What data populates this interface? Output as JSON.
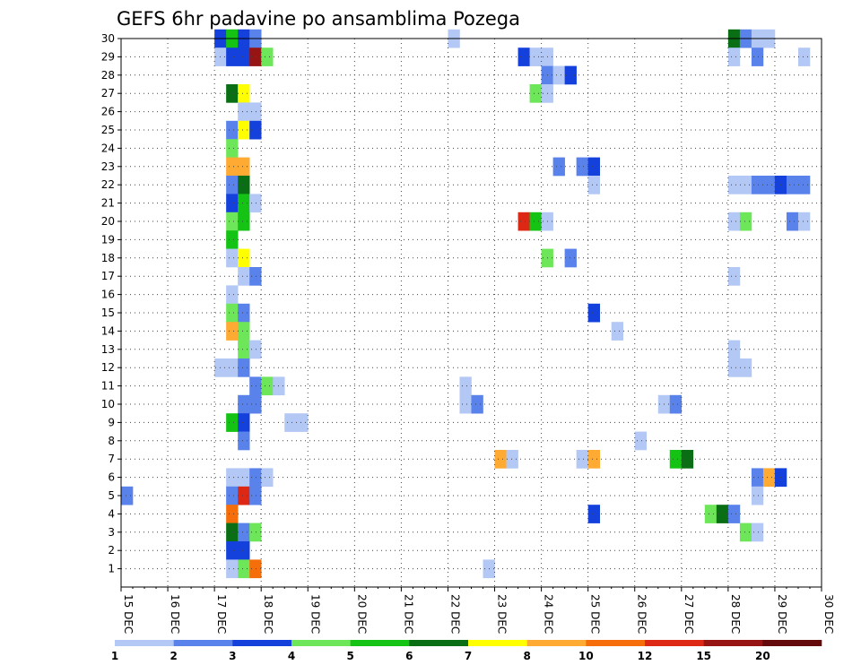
{
  "chart_data": {
    "type": "heatmap",
    "title": "GEFS 6hr padavine po ansamblima Pozega",
    "x_tick_labels": [
      "15 DEC",
      "16 DEC",
      "17 DEC",
      "18 DEC",
      "19 DEC",
      "20 DEC",
      "21 DEC",
      "22 DEC",
      "23 DEC",
      "24 DEC",
      "25 DEC",
      "26 DEC",
      "27 DEC",
      "28 DEC",
      "29 DEC",
      "30 DEC"
    ],
    "y_tick_labels": [
      "1",
      "2",
      "3",
      "4",
      "5",
      "6",
      "7",
      "8",
      "9",
      "10",
      "11",
      "12",
      "13",
      "14",
      "15",
      "16",
      "17",
      "18",
      "19",
      "20",
      "21",
      "22",
      "23",
      "24",
      "25",
      "26",
      "27",
      "28",
      "29",
      "30"
    ],
    "xlim_days": [
      15,
      30
    ],
    "ylim": [
      0,
      30
    ],
    "grid": true,
    "steps_per_day": 4,
    "legend": {
      "position": "bottom",
      "labels": [
        "1",
        "2",
        "3",
        "4",
        "5",
        "6",
        "7",
        "8",
        "10",
        "12",
        "15",
        "20"
      ],
      "colors": [
        "#b4c8f5",
        "#5a82eb",
        "#1440dc",
        "#6ee65a",
        "#14c314",
        "#0a6e14",
        "#ffff00",
        "#ffaa32",
        "#f56e0a",
        "#dc2814",
        "#961414",
        "#640a0a"
      ]
    },
    "cells": [
      {
        "member": 30,
        "start": 17.0,
        "class": 2
      },
      {
        "member": 30,
        "start": 17.25,
        "class": 4
      },
      {
        "member": 30,
        "start": 17.5,
        "class": 2
      },
      {
        "member": 30,
        "start": 17.75,
        "class": 1
      },
      {
        "member": 30,
        "start": 22.0,
        "class": 0
      },
      {
        "member": 30,
        "start": 28.0,
        "class": 5
      },
      {
        "member": 30,
        "start": 28.25,
        "class": 1
      },
      {
        "member": 30,
        "start": 28.5,
        "class": 0
      },
      {
        "member": 30,
        "start": 28.75,
        "class": 0
      },
      {
        "member": 29,
        "start": 17.0,
        "class": 0
      },
      {
        "member": 29,
        "start": 17.25,
        "class": 2
      },
      {
        "member": 29,
        "start": 17.5,
        "class": 2
      },
      {
        "member": 29,
        "start": 17.75,
        "class": 10
      },
      {
        "member": 29,
        "start": 18.0,
        "class": 3
      },
      {
        "member": 29,
        "start": 23.5,
        "class": 2
      },
      {
        "member": 29,
        "start": 23.75,
        "class": 0
      },
      {
        "member": 29,
        "start": 24.0,
        "class": 0
      },
      {
        "member": 29,
        "start": 28.0,
        "class": 0
      },
      {
        "member": 29,
        "start": 28.5,
        "class": 1
      },
      {
        "member": 29,
        "start": 29.5,
        "class": 0
      },
      {
        "member": 28,
        "start": 24.0,
        "class": 1
      },
      {
        "member": 28,
        "start": 24.25,
        "class": 0
      },
      {
        "member": 28,
        "start": 24.5,
        "class": 2
      },
      {
        "member": 27,
        "start": 17.25,
        "class": 5
      },
      {
        "member": 27,
        "start": 17.5,
        "class": 6
      },
      {
        "member": 27,
        "start": 23.75,
        "class": 3
      },
      {
        "member": 27,
        "start": 24.0,
        "class": 0
      },
      {
        "member": 26,
        "start": 17.5,
        "class": 0
      },
      {
        "member": 26,
        "start": 17.75,
        "class": 0
      },
      {
        "member": 25,
        "start": 17.25,
        "class": 1
      },
      {
        "member": 25,
        "start": 17.5,
        "class": 6
      },
      {
        "member": 25,
        "start": 17.75,
        "class": 2
      },
      {
        "member": 24,
        "start": 17.25,
        "class": 3
      },
      {
        "member": 23,
        "start": 17.25,
        "class": 7
      },
      {
        "member": 23,
        "start": 17.5,
        "class": 7
      },
      {
        "member": 23,
        "start": 24.25,
        "class": 1
      },
      {
        "member": 23,
        "start": 24.75,
        "class": 1
      },
      {
        "member": 23,
        "start": 25.0,
        "class": 2
      },
      {
        "member": 22,
        "start": 17.25,
        "class": 1
      },
      {
        "member": 22,
        "start": 17.5,
        "class": 5
      },
      {
        "member": 22,
        "start": 25.0,
        "class": 0
      },
      {
        "member": 22,
        "start": 28.0,
        "class": 0
      },
      {
        "member": 22,
        "start": 28.25,
        "class": 0
      },
      {
        "member": 22,
        "start": 28.5,
        "class": 1
      },
      {
        "member": 22,
        "start": 28.75,
        "class": 1
      },
      {
        "member": 22,
        "start": 29.0,
        "class": 2
      },
      {
        "member": 22,
        "start": 29.25,
        "class": 1
      },
      {
        "member": 22,
        "start": 29.5,
        "class": 1
      },
      {
        "member": 21,
        "start": 17.25,
        "class": 2
      },
      {
        "member": 21,
        "start": 17.5,
        "class": 4
      },
      {
        "member": 21,
        "start": 17.75,
        "class": 0
      },
      {
        "member": 20,
        "start": 17.25,
        "class": 3
      },
      {
        "member": 20,
        "start": 17.5,
        "class": 4
      },
      {
        "member": 20,
        "start": 23.5,
        "class": 9
      },
      {
        "member": 20,
        "start": 23.75,
        "class": 4
      },
      {
        "member": 20,
        "start": 24.0,
        "class": 0
      },
      {
        "member": 20,
        "start": 28.0,
        "class": 0
      },
      {
        "member": 20,
        "start": 28.25,
        "class": 3
      },
      {
        "member": 20,
        "start": 29.25,
        "class": 1
      },
      {
        "member": 20,
        "start": 29.5,
        "class": 0
      },
      {
        "member": 19,
        "start": 17.25,
        "class": 4
      },
      {
        "member": 18,
        "start": 17.25,
        "class": 0
      },
      {
        "member": 18,
        "start": 17.5,
        "class": 6
      },
      {
        "member": 18,
        "start": 24.0,
        "class": 3
      },
      {
        "member": 18,
        "start": 24.5,
        "class": 1
      },
      {
        "member": 17,
        "start": 17.5,
        "class": 0
      },
      {
        "member": 17,
        "start": 17.75,
        "class": 1
      },
      {
        "member": 17,
        "start": 28.0,
        "class": 0
      },
      {
        "member": 16,
        "start": 17.25,
        "class": 0
      },
      {
        "member": 15,
        "start": 17.25,
        "class": 3
      },
      {
        "member": 15,
        "start": 17.5,
        "class": 1
      },
      {
        "member": 15,
        "start": 25.0,
        "class": 2
      },
      {
        "member": 14,
        "start": 17.25,
        "class": 7
      },
      {
        "member": 14,
        "start": 17.5,
        "class": 3
      },
      {
        "member": 14,
        "start": 25.5,
        "class": 0
      },
      {
        "member": 13,
        "start": 17.5,
        "class": 3
      },
      {
        "member": 13,
        "start": 17.75,
        "class": 0
      },
      {
        "member": 13,
        "start": 28.0,
        "class": 0
      },
      {
        "member": 12,
        "start": 17.0,
        "class": 0
      },
      {
        "member": 12,
        "start": 17.25,
        "class": 0
      },
      {
        "member": 12,
        "start": 17.5,
        "class": 1
      },
      {
        "member": 12,
        "start": 28.0,
        "class": 0
      },
      {
        "member": 12,
        "start": 28.25,
        "class": 0
      },
      {
        "member": 11,
        "start": 17.75,
        "class": 1
      },
      {
        "member": 11,
        "start": 18.0,
        "class": 3
      },
      {
        "member": 11,
        "start": 18.25,
        "class": 0
      },
      {
        "member": 11,
        "start": 22.25,
        "class": 0
      },
      {
        "member": 10,
        "start": 17.5,
        "class": 1
      },
      {
        "member": 10,
        "start": 17.75,
        "class": 1
      },
      {
        "member": 10,
        "start": 22.25,
        "class": 0
      },
      {
        "member": 10,
        "start": 22.5,
        "class": 1
      },
      {
        "member": 10,
        "start": 26.5,
        "class": 0
      },
      {
        "member": 10,
        "start": 26.75,
        "class": 1
      },
      {
        "member": 9,
        "start": 17.25,
        "class": 4
      },
      {
        "member": 9,
        "start": 17.5,
        "class": 2
      },
      {
        "member": 9,
        "start": 18.5,
        "class": 0
      },
      {
        "member": 9,
        "start": 18.75,
        "class": 0
      },
      {
        "member": 8,
        "start": 17.5,
        "class": 1
      },
      {
        "member": 8,
        "start": 26.0,
        "class": 0
      },
      {
        "member": 7,
        "start": 23.0,
        "class": 7
      },
      {
        "member": 7,
        "start": 23.25,
        "class": 0
      },
      {
        "member": 7,
        "start": 24.75,
        "class": 0
      },
      {
        "member": 7,
        "start": 25.0,
        "class": 7
      },
      {
        "member": 7,
        "start": 26.75,
        "class": 4
      },
      {
        "member": 7,
        "start": 27.0,
        "class": 5
      },
      {
        "member": 6,
        "start": 17.25,
        "class": 0
      },
      {
        "member": 6,
        "start": 17.5,
        "class": 0
      },
      {
        "member": 6,
        "start": 17.75,
        "class": 1
      },
      {
        "member": 6,
        "start": 18.0,
        "class": 0
      },
      {
        "member": 6,
        "start": 28.5,
        "class": 1
      },
      {
        "member": 6,
        "start": 28.75,
        "class": 7
      },
      {
        "member": 6,
        "start": 29.0,
        "class": 2
      },
      {
        "member": 5,
        "start": 15.0,
        "class": 1
      },
      {
        "member": 5,
        "start": 17.25,
        "class": 1
      },
      {
        "member": 5,
        "start": 17.5,
        "class": 9
      },
      {
        "member": 5,
        "start": 17.75,
        "class": 1
      },
      {
        "member": 5,
        "start": 28.5,
        "class": 0
      },
      {
        "member": 4,
        "start": 17.25,
        "class": 8
      },
      {
        "member": 4,
        "start": 25.0,
        "class": 2
      },
      {
        "member": 4,
        "start": 27.5,
        "class": 3
      },
      {
        "member": 4,
        "start": 27.75,
        "class": 5
      },
      {
        "member": 4,
        "start": 28.0,
        "class": 1
      },
      {
        "member": 3,
        "start": 17.25,
        "class": 5
      },
      {
        "member": 3,
        "start": 17.5,
        "class": 1
      },
      {
        "member": 3,
        "start": 17.75,
        "class": 3
      },
      {
        "member": 3,
        "start": 28.25,
        "class": 3
      },
      {
        "member": 3,
        "start": 28.5,
        "class": 0
      },
      {
        "member": 2,
        "start": 17.25,
        "class": 2
      },
      {
        "member": 2,
        "start": 17.5,
        "class": 2
      },
      {
        "member": 1,
        "start": 17.25,
        "class": 0
      },
      {
        "member": 1,
        "start": 17.5,
        "class": 3
      },
      {
        "member": 1,
        "start": 17.75,
        "class": 8
      },
      {
        "member": 1,
        "start": 22.75,
        "class": 0
      }
    ]
  }
}
